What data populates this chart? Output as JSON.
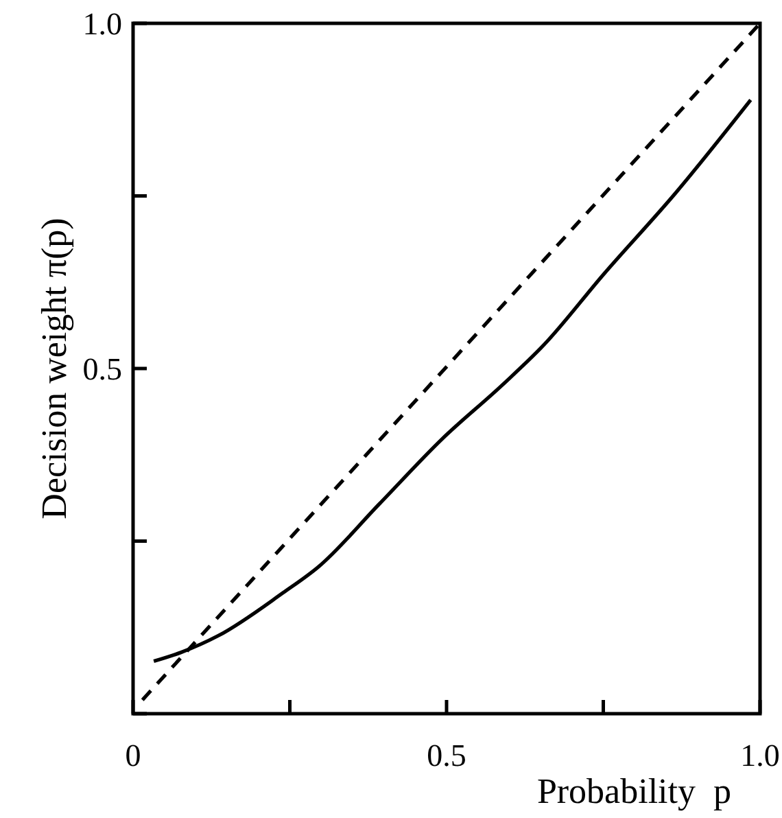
{
  "chart_data": {
    "type": "line",
    "xlabel": "Probability  p",
    "ylabel": "Decision weight π(p)",
    "xlim": [
      0,
      1
    ],
    "ylim": [
      0,
      1
    ],
    "xticks": [
      {
        "value": 0,
        "label": "0"
      },
      {
        "value": 0.25,
        "label": null
      },
      0.5,
      {
        "value": 0.75,
        "label": null
      },
      {
        "value": 1,
        "label": "1.0"
      }
    ],
    "yticks": [
      {
        "value": 0,
        "label": null
      },
      {
        "value": 0.25,
        "label": null
      },
      0.5,
      {
        "value": 0.75,
        "label": null
      },
      {
        "value": 1,
        "label": "1.0"
      }
    ],
    "grid": false,
    "series": [
      {
        "color": "#000000",
        "line_style": "solid",
        "x": [
          0.033,
          0.077,
          0.136,
          0.239,
          0.296,
          0.393,
          0.493,
          0.59,
          0.656,
          0.75,
          0.866,
          0.985
        ],
        "values": [
          0.076,
          0.089,
          0.113,
          0.175,
          0.213,
          0.304,
          0.398,
          0.477,
          0.535,
          0.636,
          0.755,
          0.889
        ]
      },
      {
        "color": "#000000",
        "line_style": "dashed",
        "x": [
          0.015,
          1
        ],
        "values": [
          0.02,
          1
        ]
      }
    ]
  }
}
